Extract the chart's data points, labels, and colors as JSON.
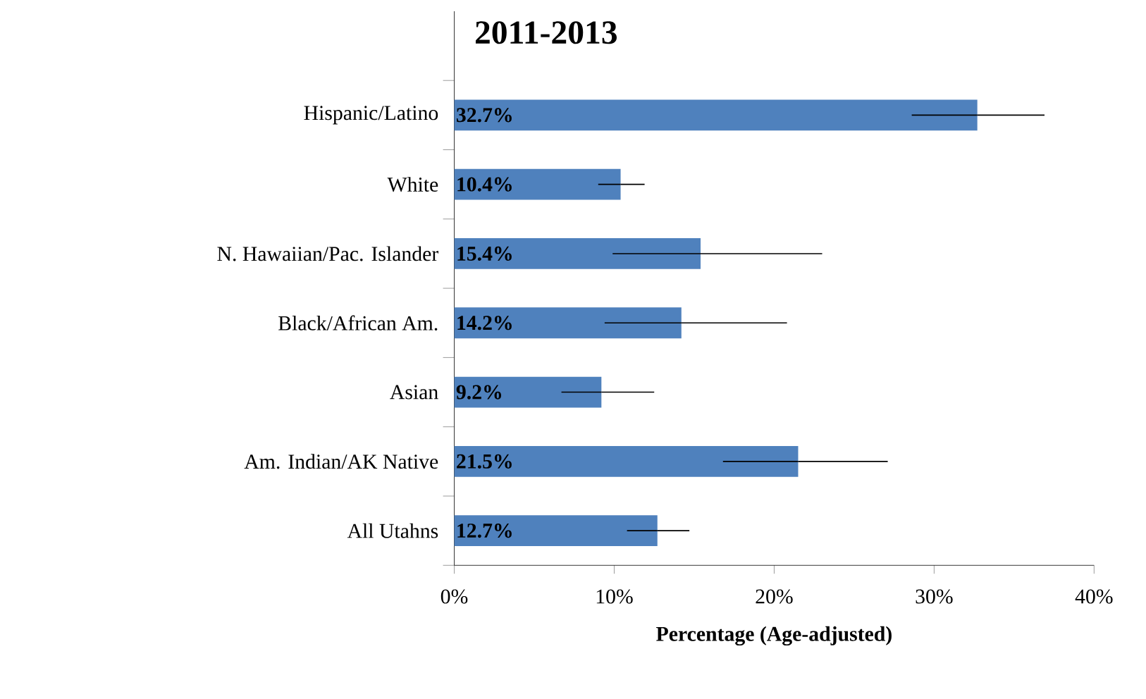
{
  "chart_data": {
    "type": "bar",
    "orientation": "horizontal",
    "title": "2011-2013",
    "xlabel": "Percentage (Age-adjusted)",
    "categories": [
      "Hispanic/Latino",
      "White",
      "N. Hawaiian/Pac. Islander",
      "Black/African Am.",
      "Asian",
      "Am. Indian/AK Native",
      "All Utahns"
    ],
    "values": [
      32.7,
      10.4,
      15.4,
      14.2,
      9.2,
      21.5,
      12.7
    ],
    "value_labels": [
      "32.7%",
      "10.4%",
      "15.4%",
      "14.2%",
      "9.2%",
      "21.5%",
      "12.7%"
    ],
    "errors": [
      [
        28.6,
        36.9
      ],
      [
        9.0,
        11.9
      ],
      [
        9.9,
        23.0
      ],
      [
        9.4,
        20.8
      ],
      [
        6.7,
        12.5
      ],
      [
        16.8,
        27.1
      ],
      [
        10.8,
        14.7
      ]
    ],
    "color": "#4f81bd",
    "xlim": [
      0,
      40
    ],
    "xticks": [
      {
        "value": 0,
        "label": "0%"
      },
      {
        "value": 10,
        "label": "10%"
      },
      {
        "value": 20,
        "label": "20%"
      },
      {
        "value": 30,
        "label": "30%"
      },
      {
        "value": 40,
        "label": "40%"
      }
    ]
  }
}
